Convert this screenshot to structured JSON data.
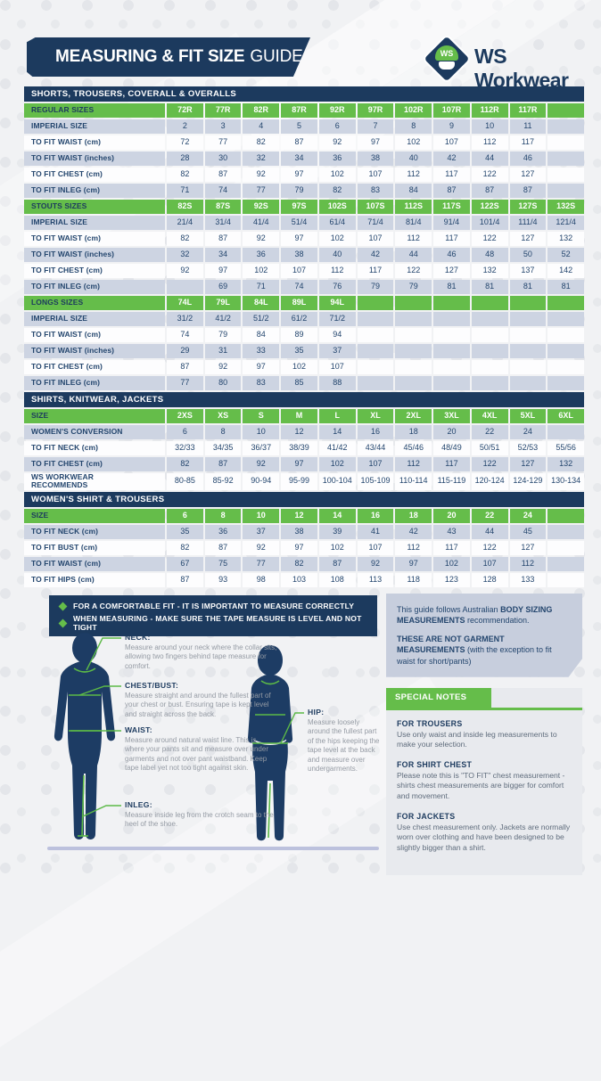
{
  "header": {
    "title_bold": "MEASURING & FIT SIZE",
    "title_light": "GUIDE",
    "brand": "WS Workwear",
    "logo_text": "WS"
  },
  "colors": {
    "navy": "#1c3a5e",
    "green": "#65bd4a",
    "light_row": "#cdd4e2",
    "info_box": "#c7cedd"
  },
  "tables": [
    {
      "section_title": "SHORTS, TROUSERS, COVERALL & OVERALLS",
      "groups": [
        {
          "header_label": "REGULAR SIZES",
          "sizes": [
            "72R",
            "77R",
            "82R",
            "87R",
            "92R",
            "97R",
            "102R",
            "107R",
            "112R",
            "117R",
            ""
          ],
          "rows": [
            {
              "label": "IMPERIAL SIZE",
              "values": [
                "2",
                "3",
                "4",
                "5",
                "6",
                "7",
                "8",
                "9",
                "10",
                "11",
                ""
              ]
            },
            {
              "label": "TO FIT WAIST (cm)",
              "values": [
                "72",
                "77",
                "82",
                "87",
                "92",
                "97",
                "102",
                "107",
                "112",
                "117",
                ""
              ]
            },
            {
              "label": "TO FIT WAIST (inches)",
              "values": [
                "28",
                "30",
                "32",
                "34",
                "36",
                "38",
                "40",
                "42",
                "44",
                "46",
                ""
              ]
            },
            {
              "label": "TO FIT CHEST (cm)",
              "values": [
                "82",
                "87",
                "92",
                "97",
                "102",
                "107",
                "112",
                "117",
                "122",
                "127",
                ""
              ]
            },
            {
              "label": "TO FIT INLEG (cm)",
              "values": [
                "71",
                "74",
                "77",
                "79",
                "82",
                "83",
                "84",
                "87",
                "87",
                "87",
                ""
              ]
            }
          ]
        },
        {
          "header_label": "STOUTS SIZES",
          "sizes": [
            "82S",
            "87S",
            "92S",
            "97S",
            "102S",
            "107S",
            "112S",
            "117S",
            "122S",
            "127S",
            "132S"
          ],
          "rows": [
            {
              "label": "IMPERIAL SIZE",
              "values": [
                "21/4",
                "31/4",
                "41/4",
                "51/4",
                "61/4",
                "71/4",
                "81/4",
                "91/4",
                "101/4",
                "111/4",
                "121/4"
              ]
            },
            {
              "label": "TO FIT WAIST (cm)",
              "values": [
                "82",
                "87",
                "92",
                "97",
                "102",
                "107",
                "112",
                "117",
                "122",
                "127",
                "132"
              ]
            },
            {
              "label": "TO FIT WAIST (inches)",
              "values": [
                "32",
                "34",
                "36",
                "38",
                "40",
                "42",
                "44",
                "46",
                "48",
                "50",
                "52"
              ]
            },
            {
              "label": "TO FIT CHEST (cm)",
              "values": [
                "92",
                "97",
                "102",
                "107",
                "112",
                "117",
                "122",
                "127",
                "132",
                "137",
                "142"
              ]
            },
            {
              "label": "TO FIT INLEG (cm)",
              "values": [
                "",
                "69",
                "71",
                "74",
                "76",
                "79",
                "79",
                "81",
                "81",
                "81",
                "81"
              ]
            }
          ]
        },
        {
          "header_label": "LONGS SIZES",
          "sizes": [
            "74L",
            "79L",
            "84L",
            "89L",
            "94L",
            "",
            "",
            "",
            "",
            "",
            ""
          ],
          "rows": [
            {
              "label": "IMPERIAL SIZE",
              "values": [
                "31/2",
                "41/2",
                "51/2",
                "61/2",
                "71/2",
                "",
                "",
                "",
                "",
                "",
                ""
              ]
            },
            {
              "label": "TO FIT WAIST (cm)",
              "values": [
                "74",
                "79",
                "84",
                "89",
                "94",
                "",
                "",
                "",
                "",
                "",
                ""
              ]
            },
            {
              "label": "TO FIT WAIST (inches)",
              "values": [
                "29",
                "31",
                "33",
                "35",
                "37",
                "",
                "",
                "",
                "",
                "",
                ""
              ]
            },
            {
              "label": "TO FIT CHEST (cm)",
              "values": [
                "87",
                "92",
                "97",
                "102",
                "107",
                "",
                "",
                "",
                "",
                "",
                ""
              ]
            },
            {
              "label": "TO FIT INLEG (cm)",
              "values": [
                "77",
                "80",
                "83",
                "85",
                "88",
                "",
                "",
                "",
                "",
                "",
                ""
              ]
            }
          ]
        }
      ]
    },
    {
      "section_title": "SHIRTS, KNITWEAR, JACKETS",
      "groups": [
        {
          "header_label": "SIZE",
          "sizes": [
            "2XS",
            "XS",
            "S",
            "M",
            "L",
            "XL",
            "2XL",
            "3XL",
            "4XL",
            "5XL",
            "6XL"
          ],
          "rows": [
            {
              "label": "WOMEN'S CONVERSION",
              "values": [
                "6",
                "8",
                "10",
                "12",
                "14",
                "16",
                "18",
                "20",
                "22",
                "24",
                ""
              ]
            },
            {
              "label": "TO FIT NECK (cm)",
              "values": [
                "32/33",
                "34/35",
                "36/37",
                "38/39",
                "41/42",
                "43/44",
                "45/46",
                "48/49",
                "50/51",
                "52/53",
                "55/56"
              ]
            },
            {
              "label": "TO FIT CHEST (cm)",
              "values": [
                "82",
                "87",
                "92",
                "97",
                "102",
                "107",
                "112",
                "117",
                "122",
                "127",
                "132"
              ]
            },
            {
              "label": "WS WORKWEAR RECOMMENDS",
              "values": [
                "80-85",
                "85-92",
                "90-94",
                "95-99",
                "100-104",
                "105-109",
                "110-114",
                "115-119",
                "120-124",
                "124-129",
                "130-134"
              ]
            }
          ]
        }
      ]
    },
    {
      "section_title": "WOMEN'S SHIRT & TROUSERS",
      "groups": [
        {
          "header_label": "SIZE",
          "sizes": [
            "6",
            "8",
            "10",
            "12",
            "14",
            "16",
            "18",
            "20",
            "22",
            "24",
            ""
          ],
          "rows": [
            {
              "label": "TO FIT NECK (cm)",
              "values": [
                "35",
                "36",
                "37",
                "38",
                "39",
                "41",
                "42",
                "43",
                "44",
                "45",
                ""
              ]
            },
            {
              "label": "TO FIT BUST (cm)",
              "values": [
                "82",
                "87",
                "92",
                "97",
                "102",
                "107",
                "112",
                "117",
                "122",
                "127",
                ""
              ]
            },
            {
              "label": "TO FIT WAIST (cm)",
              "values": [
                "67",
                "75",
                "77",
                "82",
                "87",
                "92",
                "97",
                "102",
                "107",
                "112",
                ""
              ]
            },
            {
              "label": "TO FIT HIPS (cm)",
              "values": [
                "87",
                "93",
                "98",
                "103",
                "108",
                "113",
                "118",
                "123",
                "128",
                "133",
                ""
              ]
            }
          ]
        }
      ]
    }
  ],
  "measuring": {
    "bullets": [
      "FOR A COMFORTABLE FIT - IT IS IMPORTANT TO MEASURE CORRECTLY",
      "WHEN MEASURING - MAKE SURE THE TAPE MEASURE IS LEVEL AND NOT TIGHT"
    ],
    "callouts": [
      {
        "label": "NECK:",
        "text": "Measure around your neck where the collar sits, allowing two fingers behind tape measure for comfort."
      },
      {
        "label": "CHEST/BUST:",
        "text": "Measure straight and around the fullest part of your chest or bust. Ensuring tape is kept level and straight across the back."
      },
      {
        "label": "WAIST:",
        "text": "Measure around natural waist line. This is where your pants sit and measure over under garments and not over pant waistband. Keep tape label yet not too tight against skin."
      },
      {
        "label": "HIP:",
        "text": "Measure loosely around the fullest part of the hips keeping the tape level at the back and measure over undergarments."
      },
      {
        "label": "INLEG:",
        "text": "Measure inside leg from the crotch seam to the heel of the shoe."
      }
    ]
  },
  "notes": {
    "info_box": {
      "p1": [
        {
          "t": "This guide follows Australian ",
          "b": false
        },
        {
          "t": "BODY SIZING MEASUREMENTS",
          "b": true
        },
        {
          "t": " recommendation.",
          "b": false
        }
      ],
      "p2": [
        {
          "t": "THESE ARE NOT GARMENT MEASUREMENTS",
          "b": true
        },
        {
          "t": " (with the exception to fit waist for short/pants)",
          "b": false
        }
      ]
    },
    "special_notes_title": "SPECIAL NOTES",
    "items": [
      {
        "heading": "FOR TROUSERS",
        "text": "Use only waist and inside leg measurements to make your selection."
      },
      {
        "heading": "FOR SHIRT CHEST",
        "text": "Please note this is \"TO FIT\" chest measurement - shirts chest measurements are bigger for comfort and movement."
      },
      {
        "heading": "FOR JACKETS",
        "text": "Use chest measurement only. Jackets are normally worn over clothing and have been designed to be slightly bigger than a shirt."
      }
    ]
  }
}
